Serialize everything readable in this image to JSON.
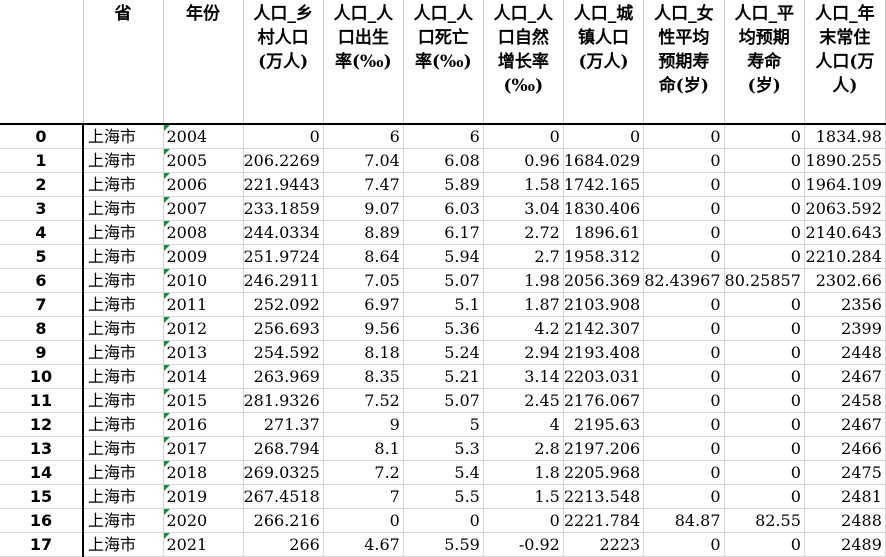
{
  "headers": [
    "",
    "省",
    "年份",
    "人口_乡村人口（万人）",
    "人口_人口出生率(‰)",
    "人口_人口死亡率(‰)",
    "人口_人口自然增长率(‰)",
    "人口_城镇人口（万人）",
    "人口_女性平均预期寿命(岁)",
    "人口_平均预期寿命(岁)",
    "人口_年末常住人口(万人)"
  ],
  "header_lines": [
    [
      ""
    ],
    [
      "省"
    ],
    [
      "年份"
    ],
    [
      "人口_乡",
      "村人口",
      "(万人)"
    ],
    [
      "人口_人",
      "口出生",
      "率(‰)"
    ],
    [
      "人口_人",
      "口死亡",
      "率(‰)"
    ],
    [
      "人口_人",
      "口自然",
      "增长率",
      "(‰)"
    ],
    [
      "人口_城",
      "镇人口",
      "(万人)"
    ],
    [
      "人口_女",
      "性平均",
      "预期寿",
      "命(岁)"
    ],
    [
      "人口_平",
      "均预期",
      "寿命",
      "(岁)"
    ],
    [
      "人口_年",
      "末常住",
      "人口(万",
      "人)"
    ]
  ],
  "rows": [
    [
      "0",
      "上海市",
      "2004",
      "0",
      "6",
      "6",
      "0",
      "0",
      "0",
      "0",
      "1834.98"
    ],
    [
      "1",
      "上海市",
      "2005",
      "206.2269",
      "7.04",
      "6.08",
      "0.96",
      "1684.029",
      "0",
      "0",
      "1890.255"
    ],
    [
      "2",
      "上海市",
      "2006",
      "221.9443",
      "7.47",
      "5.89",
      "1.58",
      "1742.165",
      "0",
      "0",
      "1964.109"
    ],
    [
      "3",
      "上海市",
      "2007",
      "233.1859",
      "9.07",
      "6.03",
      "3.04",
      "1830.406",
      "0",
      "0",
      "2063.592"
    ],
    [
      "4",
      "上海市",
      "2008",
      "244.0334",
      "8.89",
      "6.17",
      "2.72",
      "1896.61",
      "0",
      "0",
      "2140.643"
    ],
    [
      "5",
      "上海市",
      "2009",
      "251.9724",
      "8.64",
      "5.94",
      "2.7",
      "1958.312",
      "0",
      "0",
      "2210.284"
    ],
    [
      "6",
      "上海市",
      "2010",
      "246.2911",
      "7.05",
      "5.07",
      "1.98",
      "2056.369",
      "82.43967",
      "80.25857",
      "2302.66"
    ],
    [
      "7",
      "上海市",
      "2011",
      "252.092",
      "6.97",
      "5.1",
      "1.87",
      "2103.908",
      "0",
      "0",
      "2356"
    ],
    [
      "8",
      "上海市",
      "2012",
      "256.693",
      "9.56",
      "5.36",
      "4.2",
      "2142.307",
      "0",
      "0",
      "2399"
    ],
    [
      "9",
      "上海市",
      "2013",
      "254.592",
      "8.18",
      "5.24",
      "2.94",
      "2193.408",
      "0",
      "0",
      "2448"
    ],
    [
      "10",
      "上海市",
      "2014",
      "263.969",
      "8.35",
      "5.21",
      "3.14",
      "2203.031",
      "0",
      "0",
      "2467"
    ],
    [
      "11",
      "上海市",
      "2015",
      "281.9326",
      "7.52",
      "5.07",
      "2.45",
      "2176.067",
      "0",
      "0",
      "2458"
    ],
    [
      "12",
      "上海市",
      "2016",
      "271.37",
      "9",
      "5",
      "4",
      "2195.63",
      "0",
      "0",
      "2467"
    ],
    [
      "13",
      "上海市",
      "2017",
      "268.794",
      "8.1",
      "5.3",
      "2.8",
      "2197.206",
      "0",
      "0",
      "2466"
    ],
    [
      "14",
      "上海市",
      "2018",
      "269.0325",
      "7.2",
      "5.4",
      "1.8",
      "2205.968",
      "0",
      "0",
      "2475"
    ],
    [
      "15",
      "上海市",
      "2019",
      "267.4518",
      "7",
      "5.5",
      "1.5",
      "2213.548",
      "0",
      "0",
      "2481"
    ],
    [
      "16",
      "上海市",
      "2020",
      "266.216",
      "0",
      "0",
      "0",
      "2221.784",
      "84.87",
      "82.55",
      "2488"
    ],
    [
      "17",
      "上海市",
      "2021",
      "266",
      "4.67",
      "5.59",
      "-0.92",
      "2223",
      "0",
      "0",
      "2489"
    ]
  ]
}
